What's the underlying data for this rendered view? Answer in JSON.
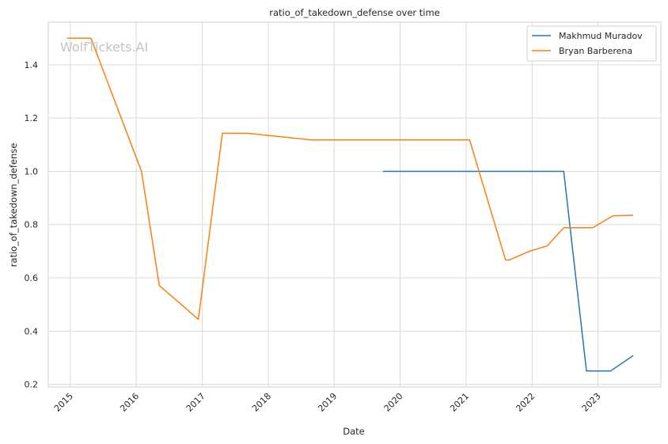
{
  "chart_data": {
    "type": "line",
    "title": "ratio_of_takedown_defense over time",
    "xlabel": "Date",
    "ylabel": "ratio_of_takedown_defense",
    "watermark": "WolfTickets.AI",
    "xlim": [
      "2014-09-01",
      "2023-12-15"
    ],
    "ylim": [
      0.19,
      1.56
    ],
    "x_ticks": [
      "2015",
      "2016",
      "2017",
      "2018",
      "2019",
      "2020",
      "2021",
      "2022",
      "2023"
    ],
    "y_ticks": [
      "0.2",
      "0.4",
      "0.6",
      "0.8",
      "1.0",
      "1.2",
      "1.4"
    ],
    "y_tick_values": [
      0.2,
      0.4,
      0.6,
      0.8,
      1.0,
      1.2,
      1.4
    ],
    "grid": true,
    "legend_position": "top-right",
    "series": [
      {
        "name": "Makhmud Muradov",
        "color": "#1f77b4",
        "points": [
          [
            "2019-09-28",
            1.0
          ],
          [
            "2022-06-25",
            1.0
          ],
          [
            "2022-10-29",
            0.25
          ],
          [
            "2023-03-11",
            0.25
          ],
          [
            "2023-07-15",
            0.308
          ]
        ]
      },
      {
        "name": "Bryan Barberena",
        "color": "#ff7f0e",
        "points": [
          [
            "2014-12-13",
            1.5
          ],
          [
            "2015-04-25",
            1.5
          ],
          [
            "2016-01-30",
            1.0
          ],
          [
            "2016-05-08",
            0.571
          ],
          [
            "2016-12-10",
            0.444
          ],
          [
            "2017-04-22",
            1.143
          ],
          [
            "2017-09-09",
            1.143
          ],
          [
            "2018-08-25",
            1.118
          ],
          [
            "2021-01-20",
            1.118
          ],
          [
            "2021-08-07",
            0.667
          ],
          [
            "2021-08-28",
            0.667
          ],
          [
            "2021-12-18",
            0.7
          ],
          [
            "2022-03-26",
            0.72
          ],
          [
            "2022-06-25",
            0.788
          ],
          [
            "2022-12-03",
            0.788
          ],
          [
            "2023-03-25",
            0.833
          ],
          [
            "2023-07-15",
            0.835
          ]
        ]
      }
    ]
  }
}
